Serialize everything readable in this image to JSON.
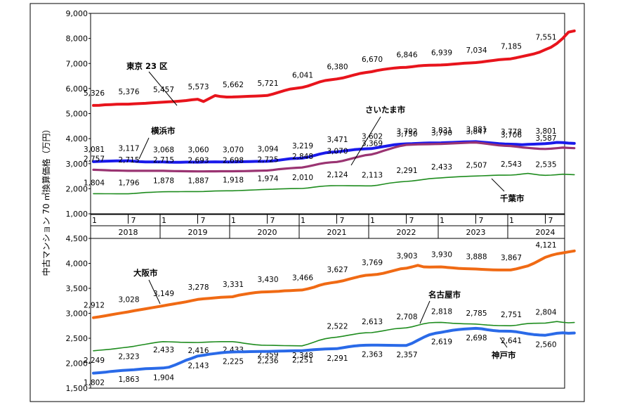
{
  "y_axis_label": "中古マンション 70 ㎡換算価格（万円）",
  "time_axis": {
    "years": [
      "2018",
      "2019",
      "2020",
      "2021",
      "2022",
      "2023",
      "2024"
    ],
    "month_labels": [
      "1",
      "7"
    ]
  },
  "chart_data": [
    {
      "type": "line",
      "x_unit": "month index from 2018-01",
      "ylim": [
        1000,
        9000
      ],
      "yticks": [
        "1,000",
        "2,000",
        "3,000",
        "4,000",
        "5,000",
        "6,000",
        "7,000",
        "8,000",
        "9,000"
      ],
      "label_months": [
        0,
        6,
        12,
        18,
        24,
        30,
        36,
        42,
        48,
        54,
        60,
        66,
        72,
        78
      ],
      "series": [
        {
          "name": "東京 23 区",
          "color": "#e8141c",
          "width": 4,
          "values": [
            5326,
            5330,
            5350,
            5360,
            5370,
            5375,
            5376,
            5390,
            5400,
            5410,
            5430,
            5440,
            5457,
            5470,
            5480,
            5500,
            5520,
            5550,
            5573,
            5480,
            5600,
            5720,
            5680,
            5660,
            5662,
            5670,
            5680,
            5690,
            5700,
            5710,
            5721,
            5780,
            5850,
            5920,
            5980,
            6010,
            6041,
            6100,
            6180,
            6260,
            6320,
            6350,
            6380,
            6420,
            6480,
            6540,
            6600,
            6640,
            6670,
            6720,
            6760,
            6790,
            6820,
            6840,
            6846,
            6870,
            6900,
            6920,
            6930,
            6935,
            6939,
            6950,
            6970,
            6990,
            7010,
            7020,
            7034,
            7060,
            7090,
            7120,
            7150,
            7170,
            7185,
            7230,
            7280,
            7330,
            7380,
            7450,
            7551,
            7650,
            7800,
            8000,
            8250,
            8300
          ],
          "labels": [
            "5,326",
            "5,376",
            "5,457",
            "5,573",
            "5,662",
            "5,721",
            "6,041",
            "6,380",
            "6,670",
            "6,846",
            "6,939",
            "7,034",
            "7,185",
            "7,551"
          ]
        },
        {
          "name": "横浜市",
          "color": "#1a1aeb",
          "width": 4,
          "values": [
            3081,
            3090,
            3100,
            3105,
            3110,
            3115,
            3117,
            3100,
            3080,
            3070,
            3069,
            3068,
            3068,
            3060,
            3055,
            3058,
            3062,
            3063,
            3060,
            3065,
            3070,
            3075,
            3072,
            3070,
            3070,
            3075,
            3080,
            3085,
            3090,
            3092,
            3094,
            3110,
            3140,
            3170,
            3200,
            3210,
            3219,
            3260,
            3320,
            3380,
            3430,
            3460,
            3471,
            3500,
            3530,
            3560,
            3580,
            3595,
            3602,
            3640,
            3680,
            3720,
            3760,
            3780,
            3792,
            3800,
            3810,
            3820,
            3828,
            3830,
            3831,
            3840,
            3850,
            3860,
            3870,
            3875,
            3881,
            3860,
            3840,
            3820,
            3800,
            3785,
            3778,
            3770,
            3760,
            3770,
            3780,
            3790,
            3801,
            3820,
            3850,
            3840,
            3820,
            3810
          ],
          "labels": [
            "3,081",
            "3,117",
            "3,068",
            "3,060",
            "3,070",
            "3,094",
            "3,219",
            "3,471",
            "3,602",
            "3,792",
            "3,831",
            "3,881",
            "3,778",
            "3,801"
          ]
        },
        {
          "name": "さいたま市",
          "color": "#9a3472",
          "width": 3.2,
          "values": [
            2757,
            2750,
            2740,
            2730,
            2725,
            2720,
            2715,
            2715,
            2715,
            2715,
            2715,
            2715,
            2715,
            2710,
            2705,
            2700,
            2698,
            2695,
            2693,
            2694,
            2695,
            2696,
            2697,
            2698,
            2698,
            2700,
            2705,
            2710,
            2715,
            2720,
            2725,
            2750,
            2780,
            2800,
            2820,
            2835,
            2848,
            2890,
            2940,
            2990,
            3030,
            3055,
            3070,
            3110,
            3170,
            3230,
            3290,
            3340,
            3369,
            3430,
            3510,
            3580,
            3650,
            3710,
            3750,
            3760,
            3770,
            3775,
            3780,
            3785,
            3790,
            3800,
            3810,
            3820,
            3830,
            3840,
            3847,
            3820,
            3790,
            3760,
            3730,
            3715,
            3706,
            3680,
            3650,
            3630,
            3610,
            3595,
            3587,
            3600,
            3620,
            3640,
            3630,
            3620
          ],
          "labels": [
            "2,757",
            "2,715",
            "2,715",
            "2,693",
            "2,698",
            "2,725",
            "2,848",
            "3,070",
            "3,369",
            "3,750",
            "3,790",
            "3,847",
            "3,706",
            "3,587"
          ]
        },
        {
          "name": "千葉市",
          "color": "#1e8c1e",
          "width": 1.6,
          "values": [
            1804,
            1802,
            1800,
            1799,
            1798,
            1797,
            1796,
            1810,
            1830,
            1850,
            1860,
            1870,
            1878,
            1880,
            1882,
            1884,
            1886,
            1887,
            1887,
            1890,
            1900,
            1910,
            1915,
            1918,
            1918,
            1925,
            1935,
            1945,
            1955,
            1965,
            1974,
            1980,
            1990,
            2000,
            2005,
            2008,
            2010,
            2030,
            2060,
            2090,
            2110,
            2120,
            2124,
            2122,
            2120,
            2118,
            2116,
            2114,
            2113,
            2140,
            2180,
            2220,
            2250,
            2275,
            2291,
            2310,
            2340,
            2370,
            2400,
            2420,
            2433,
            2450,
            2465,
            2480,
            2490,
            2500,
            2507,
            2515,
            2525,
            2535,
            2540,
            2542,
            2543,
            2560,
            2590,
            2610,
            2580,
            2550,
            2535,
            2545,
            2560,
            2580,
            2570,
            2560
          ],
          "labels": [
            "1,804",
            "1,796",
            "1,878",
            "1,887",
            "1,918",
            "1,974",
            "2,010",
            "2,124",
            "2,113",
            "2,291",
            "2,433",
            "2,507",
            "2,543",
            "2,535"
          ]
        }
      ]
    },
    {
      "type": "line",
      "x_unit": "month index from 2018-01",
      "ylim": [
        1500,
        4500
      ],
      "yticks": [
        "1,500",
        "2,000",
        "2,500",
        "3,000",
        "3,500",
        "4,000",
        "4,500"
      ],
      "label_months": [
        0,
        6,
        12,
        18,
        24,
        30,
        36,
        42,
        48,
        54,
        60,
        66,
        72,
        78
      ],
      "series": [
        {
          "name": "大阪市",
          "color": "#f06a14",
          "width": 4,
          "values": [
            2912,
            2930,
            2950,
            2970,
            2990,
            3010,
            3028,
            3050,
            3070,
            3090,
            3110,
            3130,
            3149,
            3170,
            3190,
            3210,
            3230,
            3255,
            3278,
            3290,
            3300,
            3310,
            3320,
            3325,
            3331,
            3360,
            3380,
            3400,
            3415,
            3425,
            3430,
            3435,
            3440,
            3450,
            3455,
            3460,
            3466,
            3490,
            3520,
            3560,
            3590,
            3610,
            3627,
            3650,
            3680,
            3710,
            3740,
            3760,
            3769,
            3780,
            3800,
            3830,
            3860,
            3890,
            3903,
            3930,
            3960,
            3930,
            3925,
            3928,
            3930,
            3920,
            3910,
            3900,
            3895,
            3890,
            3888,
            3880,
            3875,
            3870,
            3868,
            3867,
            3867,
            3890,
            3920,
            3950,
            4000,
            4060,
            4121,
            4160,
            4190,
            4210,
            4230,
            4250
          ],
          "labels": [
            "2,912",
            "3,028",
            "3,149",
            "3,278",
            "3,331",
            "3,430",
            "3,466",
            "3,627",
            "3,769",
            "3,903",
            "3,930",
            "3,888",
            "3,867",
            "4,121"
          ]
        },
        {
          "name": "名古屋市",
          "color": "#1e8c1e",
          "width": 1.6,
          "values": [
            2249,
            2260,
            2270,
            2280,
            2295,
            2310,
            2323,
            2340,
            2360,
            2380,
            2400,
            2420,
            2433,
            2430,
            2425,
            2420,
            2418,
            2417,
            2416,
            2420,
            2425,
            2430,
            2432,
            2433,
            2433,
            2420,
            2400,
            2385,
            2370,
            2362,
            2359,
            2358,
            2355,
            2352,
            2350,
            2349,
            2348,
            2380,
            2420,
            2460,
            2490,
            2510,
            2522,
            2540,
            2560,
            2580,
            2600,
            2610,
            2613,
            2630,
            2650,
            2670,
            2690,
            2700,
            2708,
            2730,
            2760,
            2790,
            2810,
            2815,
            2818,
            2810,
            2800,
            2795,
            2790,
            2787,
            2785,
            2775,
            2765,
            2758,
            2753,
            2752,
            2751,
            2760,
            2780,
            2795,
            2800,
            2802,
            2804,
            2820,
            2835,
            2820,
            2810,
            2815
          ],
          "labels": [
            "2,249",
            "2,323",
            "2,433",
            "2,416",
            "2,433",
            "2,359",
            "2,348",
            "2,522",
            "2,613",
            "2,708",
            "2,818",
            "2,785",
            "2,751",
            "2,804"
          ]
        },
        {
          "name": "神戸市",
          "color": "#2a6ae8",
          "width": 4,
          "values": [
            1802,
            1810,
            1820,
            1835,
            1845,
            1855,
            1863,
            1870,
            1880,
            1890,
            1895,
            1900,
            1904,
            1920,
            1960,
            2010,
            2060,
            2100,
            2143,
            2160,
            2180,
            2195,
            2210,
            2220,
            2225,
            2228,
            2230,
            2232,
            2234,
            2235,
            2236,
            2240,
            2242,
            2245,
            2248,
            2250,
            2251,
            2260,
            2270,
            2278,
            2285,
            2289,
            2291,
            2310,
            2330,
            2345,
            2355,
            2360,
            2363,
            2362,
            2360,
            2359,
            2358,
            2357,
            2357,
            2400,
            2460,
            2520,
            2570,
            2600,
            2619,
            2640,
            2660,
            2675,
            2685,
            2692,
            2698,
            2690,
            2670,
            2655,
            2645,
            2642,
            2641,
            2630,
            2610,
            2590,
            2575,
            2565,
            2560,
            2580,
            2600,
            2610,
            2600,
            2605
          ],
          "labels": [
            "1,802",
            "1,863",
            "1,904",
            "2,143",
            "2,225",
            "2,236",
            "2,251",
            "2,291",
            "2,363",
            "2,357",
            "2,619",
            "2,698",
            "2,641",
            "2,560"
          ]
        }
      ]
    }
  ]
}
